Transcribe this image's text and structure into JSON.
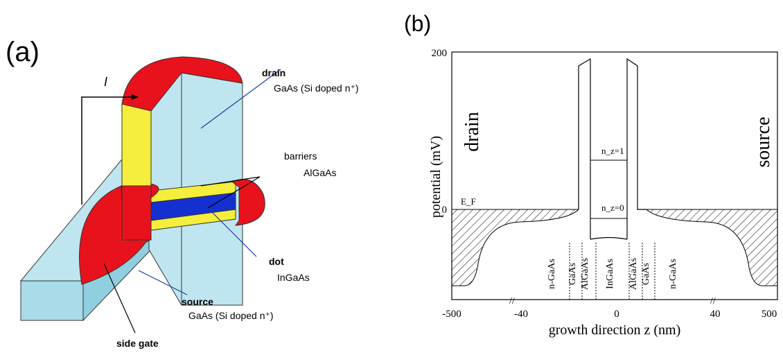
{
  "panel_a": {
    "label": "(a)",
    "current": "I",
    "drain": "drain",
    "drain_material": "GaAs (Si doped n⁺)",
    "barriers": "barriers",
    "barriers_material": "AlGaAs",
    "dot": "dot",
    "dot_material": "InGaAs",
    "source": "source",
    "source_material": "GaAs (Si doped n⁺)",
    "side_gate": "side gate"
  },
  "panel_b": {
    "label": "(b)",
    "y_axis_label": "potential  (mV)",
    "x_axis_label": "growth direction  z  (nm)",
    "y_ticks": [
      "200",
      "0"
    ],
    "x_ticks": [
      "-500",
      "-40",
      "0",
      "40",
      "500"
    ],
    "left_side": "drain",
    "right_side": "source",
    "fermi_level": "E_F",
    "levels": [
      "n_z=1",
      "n_z=0"
    ],
    "regions": [
      "n-GaAs",
      "GaAs",
      "AlGaAs",
      "InGaAs",
      "AlGaAs",
      "GaAs",
      "n-GaAs"
    ]
  }
}
